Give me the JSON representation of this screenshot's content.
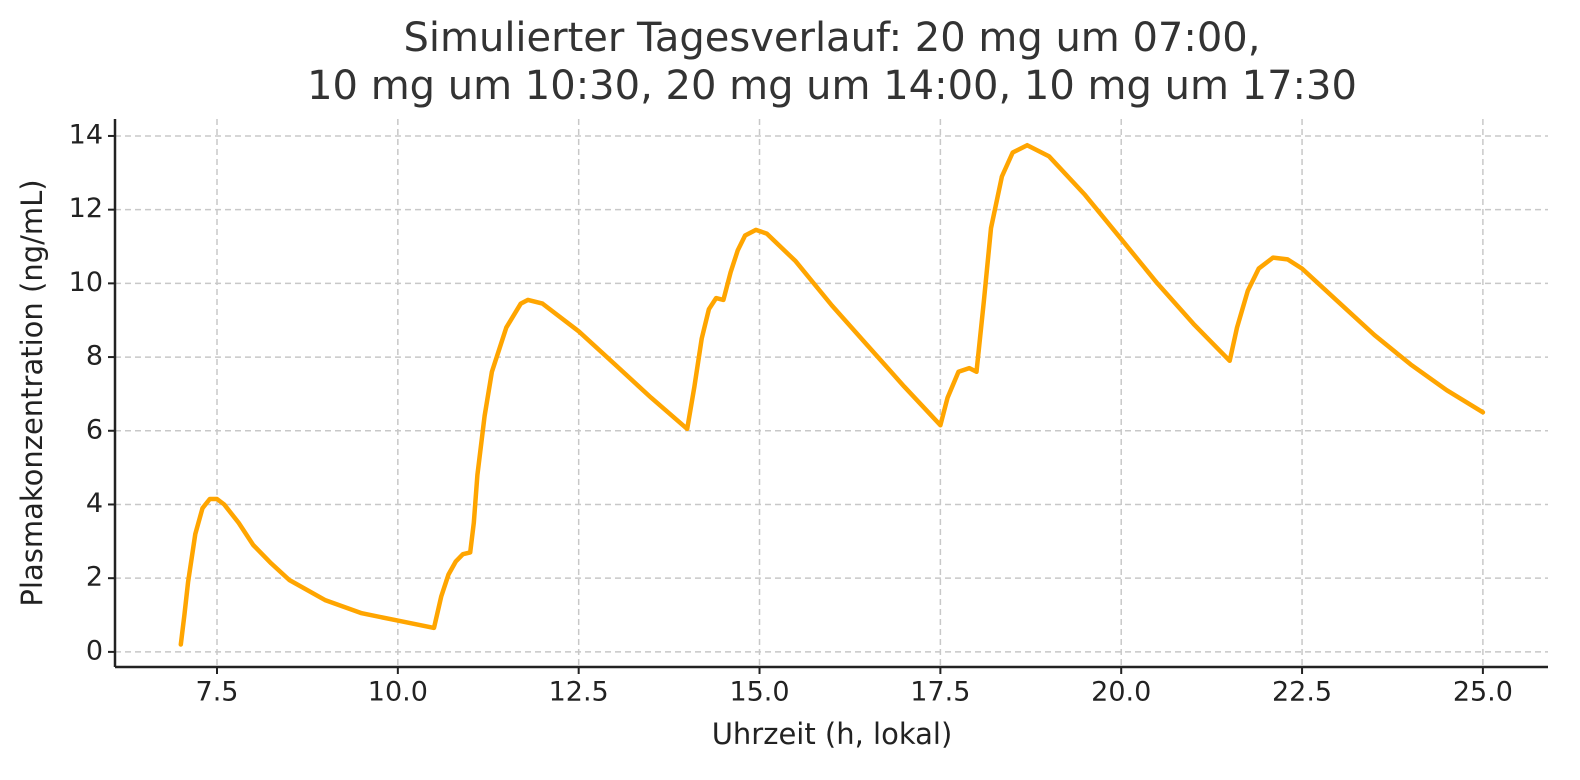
{
  "chart_data": {
    "type": "line",
    "title": [
      "Simulierter Tagesverlauf: 20 mg um 07:00,",
      "10 mg um 10:30, 20 mg um 14:00, 10 mg um 17:30"
    ],
    "xlabel": "Uhrzeit (h, lokal)",
    "ylabel": "Plasmakonzentration (ng/mL)",
    "color": "#ffa500",
    "grid": true,
    "xlim": [
      6.09,
      25.9
    ],
    "ylim": [
      -0.41,
      14.46
    ],
    "xticks": [
      7.5,
      {
        "value": 10,
        "label": "10.0"
      },
      12.5,
      {
        "value": 15,
        "label": "15.0"
      },
      17.5,
      {
        "value": 20,
        "label": "20.0"
      },
      22.5,
      {
        "value": 25,
        "label": "25.0"
      }
    ],
    "yticks": [
      0,
      2,
      4,
      6,
      8,
      10,
      12,
      14
    ],
    "x": [
      7.0,
      7.05,
      7.1,
      7.2,
      7.3,
      7.4,
      7.5,
      7.6,
      7.8,
      8.0,
      8.25,
      8.5,
      9.0,
      9.5,
      10.0,
      10.5,
      10.6,
      10.7,
      10.8,
      10.9,
      11.0,
      11.05,
      11.1,
      11.2,
      11.3,
      11.5,
      11.7,
      11.8,
      12.0,
      12.5,
      13.0,
      13.5,
      14.0,
      14.1,
      14.2,
      14.3,
      14.4,
      14.5,
      14.6,
      14.7,
      14.8,
      14.95,
      15.1,
      15.5,
      16.0,
      16.5,
      17.0,
      17.5,
      17.6,
      17.75,
      17.9,
      18.0,
      18.1,
      18.2,
      18.35,
      18.5,
      18.7,
      19.0,
      19.5,
      20.0,
      20.5,
      21.0,
      21.5,
      21.6,
      21.75,
      21.9,
      22.1,
      22.3,
      22.5,
      23.0,
      23.5,
      24.0,
      24.5,
      25.0
    ],
    "values": [
      0.2,
      1.0,
      1.9,
      3.2,
      3.9,
      4.15,
      4.15,
      4.0,
      3.5,
      2.9,
      2.4,
      1.95,
      1.4,
      1.05,
      0.85,
      0.65,
      1.5,
      2.1,
      2.45,
      2.65,
      2.7,
      3.5,
      4.8,
      6.4,
      7.6,
      8.8,
      9.45,
      9.55,
      9.45,
      8.7,
      7.8,
      6.9,
      6.05,
      7.2,
      8.5,
      9.3,
      9.6,
      9.55,
      10.3,
      10.9,
      11.3,
      11.45,
      11.35,
      10.6,
      9.4,
      8.3,
      7.2,
      6.15,
      6.9,
      7.6,
      7.7,
      7.6,
      9.5,
      11.5,
      12.9,
      13.55,
      13.75,
      13.45,
      12.4,
      11.2,
      10.0,
      8.9,
      7.9,
      8.8,
      9.8,
      10.4,
      10.7,
      10.65,
      10.4,
      9.5,
      8.6,
      7.8,
      7.1,
      6.5
    ]
  }
}
